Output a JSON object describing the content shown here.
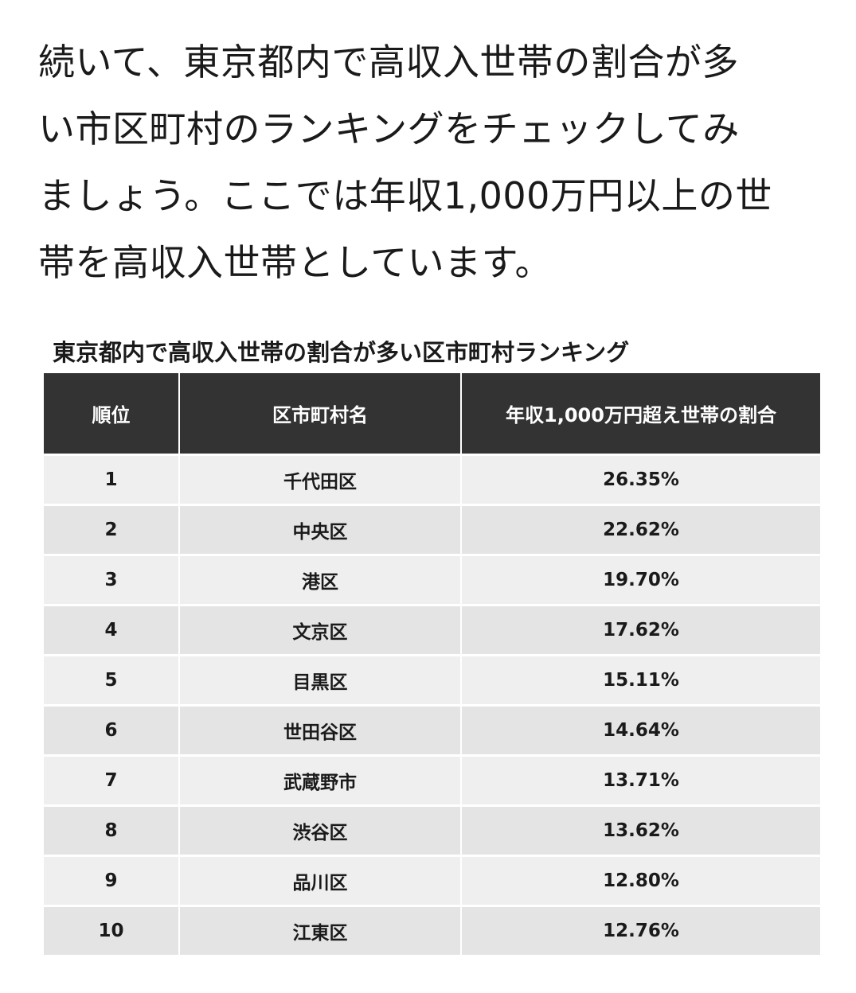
{
  "intro": {
    "lines": [
      "続いて、東京都内で高収入世帯の割合が多",
      "い市区町村のランキングをチェックしてみ",
      "ましょう。ここでは年収1,000万円以上の世",
      "帯を高収入世帯としています。"
    ]
  },
  "table": {
    "title": "東京都内で高収入世帯の割合が多い区市町村ランキング",
    "headers": {
      "rank": "順位",
      "name": "区市町村名",
      "pct": "年収1,000万円超え世帯の割合"
    },
    "rows": [
      {
        "rank": "1",
        "name": "千代田区",
        "pct": "26.35%"
      },
      {
        "rank": "2",
        "name": "中央区",
        "pct": "22.62%"
      },
      {
        "rank": "3",
        "name": "港区",
        "pct": "19.70%"
      },
      {
        "rank": "4",
        "name": "文京区",
        "pct": "17.62%"
      },
      {
        "rank": "5",
        "name": "目黒区",
        "pct": "15.11%"
      },
      {
        "rank": "6",
        "name": "世田谷区",
        "pct": "14.64%"
      },
      {
        "rank": "7",
        "name": "武蔵野市",
        "pct": "13.71%"
      },
      {
        "rank": "8",
        "name": "渋谷区",
        "pct": "13.62%"
      },
      {
        "rank": "9",
        "name": "品川区",
        "pct": "12.80%"
      },
      {
        "rank": "10",
        "name": "江東区",
        "pct": "12.76%"
      }
    ]
  },
  "colors": {
    "header_bg": "#333333",
    "row_light": "#efefef",
    "row_dark": "#e4e4e4"
  }
}
